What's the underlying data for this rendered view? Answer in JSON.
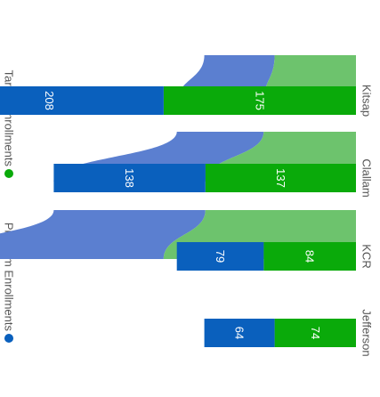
{
  "chart_data": {
    "type": "ribbon",
    "orientation": "rotated-90-clockwise",
    "categories": [
      "Kitsap",
      "Clallam",
      "KCR",
      "Jefferson"
    ],
    "series": [
      {
        "name": "Program Enrollments",
        "values": [
          208,
          138,
          79,
          64
        ],
        "color": "#0a60bd"
      },
      {
        "name": "Target Enrollments",
        "values": [
          175,
          137,
          84,
          74
        ],
        "color": "#0aaa0a"
      }
    ],
    "legend_position": "left",
    "value_labels": true,
    "ribbon_colors": {
      "Program Enrollments": "#5b7fd0",
      "Target Enrollments": "#6dc36d",
      "overlap": "#2b9e7e"
    },
    "label_color": "#555555",
    "value_label_color": "#ffffff"
  }
}
